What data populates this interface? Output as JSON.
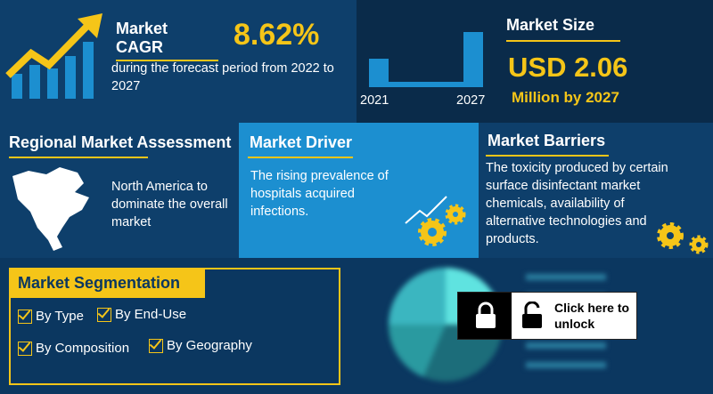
{
  "cagr": {
    "label": "Market CAGR",
    "value": "8.62%",
    "description": "during the forecast period from 2022 to 2027"
  },
  "market_size": {
    "title": "Market Size",
    "years": [
      "2021",
      "2027"
    ],
    "value": "USD 2.06",
    "unit": "Million by 2027"
  },
  "regional": {
    "title": "Regional Market Assessment",
    "text": "North America to dominate the overall market"
  },
  "driver": {
    "title": "Market Driver",
    "text": "The rising prevalence of hospitals acquired infections."
  },
  "barriers": {
    "title": "Market Barriers",
    "text": "The toxicity produced by certain surface disinfectant market chemicals, availability of alternative technologies and products."
  },
  "segmentation": {
    "title": "Market Segmentation",
    "items": [
      "By Type",
      "By End-Use",
      "By Composition",
      "By Geography"
    ]
  },
  "unlock": {
    "label": "Click here to unlock"
  }
}
